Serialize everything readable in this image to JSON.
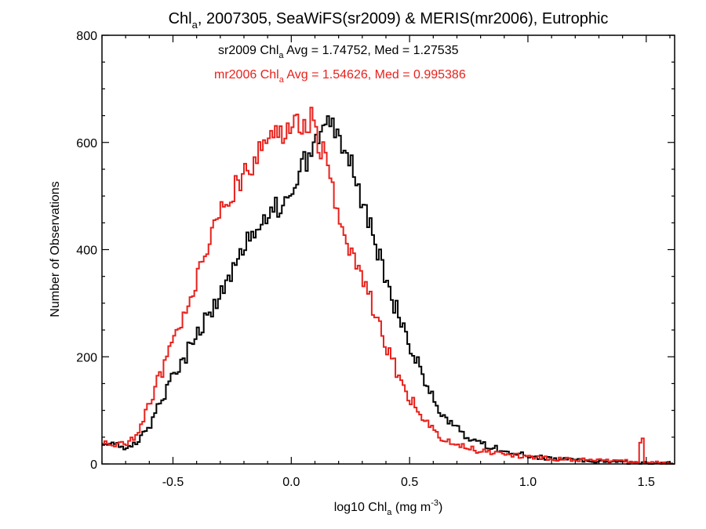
{
  "chart_data": {
    "type": "histogram-step",
    "title": {
      "pre": "Chl",
      "sub": "a",
      "post": ", 2007305, SeaWiFS(sr2009) & MERIS(mr2006), Eutrophic"
    },
    "xlabel": {
      "pre": "log10 Chl",
      "sub": "a",
      "mid": " (mg m",
      "sup": "-3",
      "post": ")"
    },
    "ylabel": "Number of Observations",
    "xlim": [
      -0.8,
      1.62
    ],
    "ylim": [
      0,
      800
    ],
    "xticks": [
      -0.5,
      0.0,
      0.5,
      1.0,
      1.5
    ],
    "xtick_labels": [
      "-0.5",
      "0.0",
      "0.5",
      "1.0",
      "1.5"
    ],
    "yticks": [
      0,
      200,
      400,
      600,
      800
    ],
    "ytick_labels": [
      "0",
      "200",
      "400",
      "600",
      "800"
    ],
    "grid": false,
    "annotations": [
      {
        "color": "#000000",
        "pre": "sr2009 Chl",
        "sub": "a",
        "post": " Avg = 1.74752, Med = 1.27535"
      },
      {
        "color": "#e8211c",
        "pre": "mr2006 Chl",
        "sub": "a",
        "post": " Avg = 1.54626, Med = 0.995386"
      }
    ],
    "series": [
      {
        "color": "#000000",
        "x": [
          -0.8,
          -0.7,
          -0.65,
          -0.6,
          -0.55,
          -0.5,
          -0.45,
          -0.4,
          -0.35,
          -0.3,
          -0.25,
          -0.2,
          -0.15,
          -0.1,
          -0.05,
          0.0,
          0.05,
          0.1,
          0.15,
          0.18,
          0.2,
          0.25,
          0.3,
          0.35,
          0.4,
          0.45,
          0.5,
          0.55,
          0.6,
          0.65,
          0.7,
          0.75,
          0.8,
          0.85,
          0.9,
          1.0,
          1.1,
          1.2,
          1.3,
          1.4,
          1.5,
          1.62
        ],
        "y": [
          38,
          32,
          40,
          70,
          120,
          165,
          200,
          240,
          280,
          320,
          365,
          400,
          445,
          470,
          480,
          500,
          560,
          590,
          625,
          640,
          610,
          560,
          480,
          420,
          345,
          280,
          220,
          170,
          120,
          85,
          65,
          50,
          40,
          30,
          25,
          15,
          10,
          7,
          5,
          3,
          2,
          1
        ]
      },
      {
        "color": "#e8211c",
        "x": [
          -0.8,
          -0.7,
          -0.65,
          -0.6,
          -0.55,
          -0.5,
          -0.45,
          -0.4,
          -0.35,
          -0.3,
          -0.25,
          -0.2,
          -0.15,
          -0.1,
          -0.05,
          0.0,
          0.05,
          0.08,
          0.1,
          0.15,
          0.2,
          0.25,
          0.3,
          0.35,
          0.4,
          0.45,
          0.5,
          0.55,
          0.6,
          0.65,
          0.7,
          0.75,
          0.8,
          0.9,
          1.0,
          1.1,
          1.2,
          1.3,
          1.4,
          1.47,
          1.48,
          1.49,
          1.5,
          1.62
        ],
        "y": [
          40,
          38,
          55,
          110,
          170,
          230,
          290,
          345,
          415,
          470,
          510,
          545,
          570,
          595,
          620,
          630,
          640,
          645,
          620,
          565,
          455,
          390,
          345,
          290,
          225,
          170,
          125,
          90,
          60,
          45,
          35,
          28,
          25,
          18,
          13,
          10,
          8,
          7,
          5,
          5,
          80,
          5,
          3,
          1
        ]
      }
    ]
  }
}
